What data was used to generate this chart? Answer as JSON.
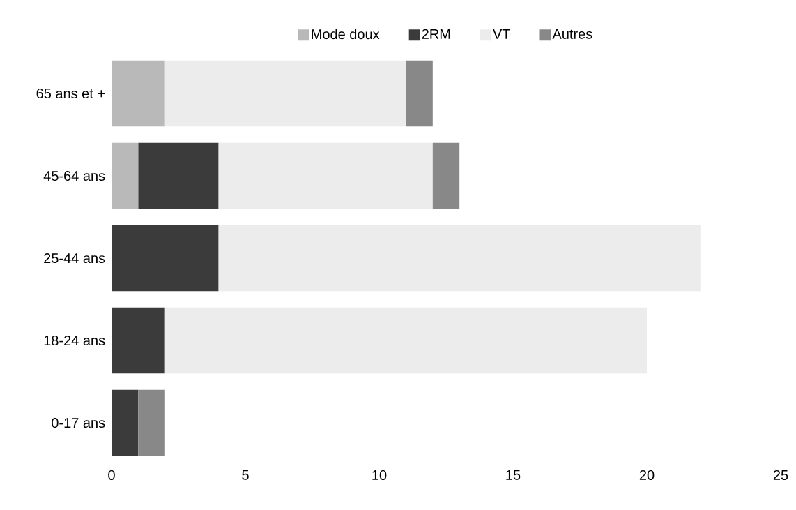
{
  "chart_data": {
    "type": "bar",
    "orientation": "horizontal",
    "stacked": true,
    "legend": "top",
    "categories": [
      "65 ans et +",
      "45-64 ans",
      "25-44 ans",
      "18-24 ans",
      "0-17 ans"
    ],
    "series": [
      {
        "name": "Mode doux",
        "color": "#b9b9b9",
        "values": [
          2,
          1,
          null,
          null,
          null
        ]
      },
      {
        "name": "2RM",
        "color": "#3b3b3b",
        "values": [
          null,
          3,
          4,
          2,
          1
        ]
      },
      {
        "name": "VT",
        "color": "#ececec",
        "values": [
          9,
          8,
          18,
          18,
          null
        ]
      },
      {
        "name": "Autres",
        "color": "#888888",
        "values": [
          1,
          1,
          null,
          null,
          1
        ]
      }
    ],
    "xlim": [
      0,
      25
    ],
    "xticks": [
      0,
      5,
      10,
      15,
      20,
      25
    ]
  }
}
